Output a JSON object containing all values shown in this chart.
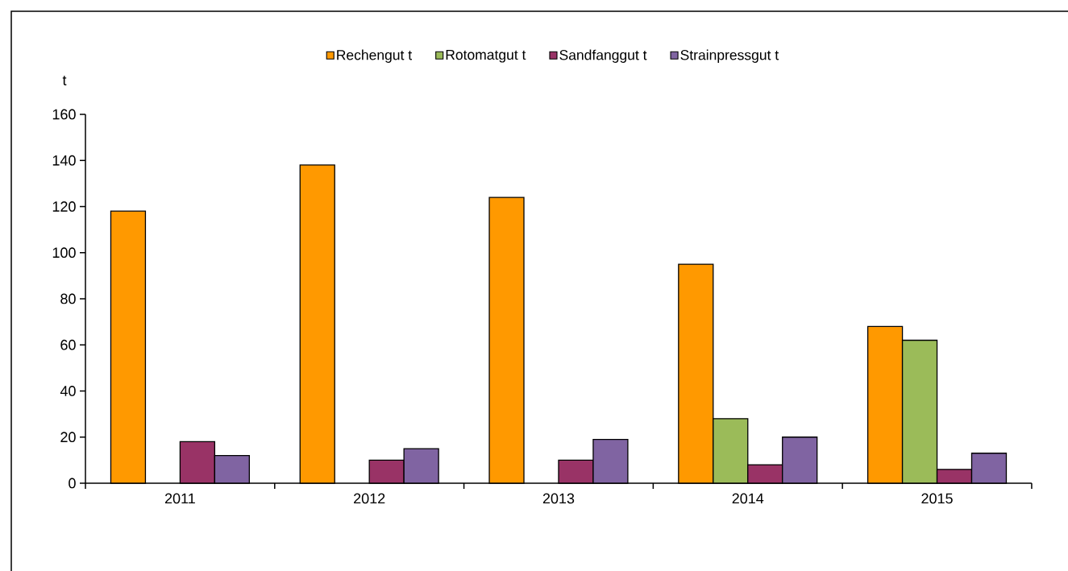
{
  "chart_data": {
    "type": "bar",
    "ylabel": "t",
    "categories": [
      "2011",
      "2012",
      "2013",
      "2014",
      "2015"
    ],
    "series": [
      {
        "name": "Rechengut t",
        "color": "#ff9900",
        "values": [
          118,
          138,
          124,
          95,
          68
        ]
      },
      {
        "name": "Rotomatgut t",
        "color": "#9bbb59",
        "values": [
          null,
          null,
          null,
          28,
          62
        ]
      },
      {
        "name": "Sandfanggut t",
        "color": "#993366",
        "values": [
          18,
          10,
          10,
          8,
          6
        ]
      },
      {
        "name": "Strainpressgut t",
        "color": "#8064a2",
        "values": [
          12,
          15,
          19,
          20,
          13
        ]
      }
    ],
    "ylim": [
      0,
      160
    ],
    "yticks": [
      0,
      20,
      40,
      60,
      80,
      100,
      120,
      140,
      160
    ],
    "legend": "top"
  }
}
